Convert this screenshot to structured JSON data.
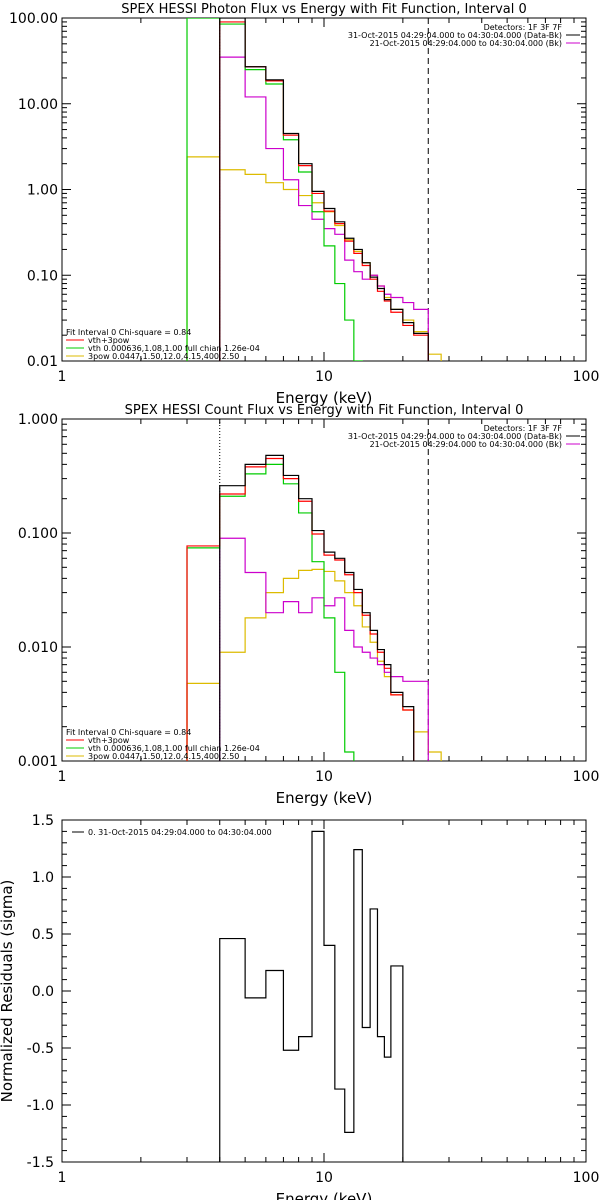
{
  "colors": {
    "total": "#000000",
    "vth_plus_3pow": "#ff0000",
    "vth": "#00cc00",
    "3pow": "#ddbb00",
    "bk": "#cc00cc"
  },
  "chart_data": [
    {
      "type": "step",
      "title": "SPEX HESSI Photon Flux vs Energy with Fit Function, Interval 0",
      "xlabel": "Energy (keV)",
      "ylabel": "",
      "xscale": "log",
      "yscale": "log",
      "xlim": [
        1,
        100
      ],
      "ylim": [
        0.01,
        100
      ],
      "xticks": [
        "1",
        "10",
        "100"
      ],
      "yticks": [
        "0.01",
        "0.10",
        "1.00",
        "10.00",
        "100.00"
      ],
      "legend_top_right": [
        "Detectors: 1F 3F 7F",
        "31-Oct-2015 04:29:04.000 to 04:30:04.000 (Data-Bk)",
        "21-Oct-2015 04:29:04.000 to 04:30:04.000 (Bk)"
      ],
      "legend_bottom_left": [
        "Fit Interval 0   Chi-square = 0.84",
        "vth+3pow",
        "vth 0.000636,1.08,1.00  full chian 1.26e-04",
        "3pow 0.0447,1.50,12.0,4.15,400,2.50"
      ],
      "vlines": [
        4.0,
        25.0
      ],
      "edges": [
        3.0,
        4.0,
        5.0,
        6.0,
        7.0,
        8.0,
        9.0,
        10.0,
        11.0,
        12.0,
        13.0,
        14.0,
        15.0,
        16.0,
        17.0,
        18.0,
        20.0,
        22.0,
        25.0,
        28.0
      ],
      "series": [
        {
          "name": "Data-Bk",
          "color": "#000000",
          "values": [
            null,
            100,
            27,
            19,
            4.5,
            2.0,
            0.95,
            0.6,
            0.42,
            0.27,
            0.2,
            0.14,
            0.095,
            0.07,
            0.052,
            0.04,
            0.028,
            0.021,
            null
          ]
        },
        {
          "name": "vth+3pow",
          "color": "#ff0000",
          "values": [
            null,
            90,
            27,
            18.5,
            4.3,
            1.9,
            0.9,
            0.56,
            0.4,
            0.25,
            0.18,
            0.13,
            0.09,
            0.065,
            0.05,
            0.037,
            0.026,
            0.02,
            null
          ]
        },
        {
          "name": "vth",
          "color": "#00cc00",
          "values": [
            100,
            85,
            25,
            17,
            3.8,
            1.6,
            0.55,
            0.22,
            0.08,
            0.03,
            0.01,
            null,
            null,
            null,
            null,
            null,
            null,
            null,
            null
          ]
        },
        {
          "name": "3pow",
          "color": "#ddbb00",
          "values": [
            2.4,
            1.7,
            1.5,
            1.2,
            1.0,
            0.85,
            0.7,
            0.55,
            0.38,
            0.26,
            0.19,
            0.14,
            0.1,
            0.075,
            0.055,
            0.04,
            0.03,
            0.022,
            0.012
          ]
        },
        {
          "name": "Bk",
          "color": "#cc00cc",
          "values": [
            null,
            35,
            12,
            3.0,
            1.3,
            0.65,
            0.45,
            0.35,
            0.3,
            0.15,
            0.11,
            0.09,
            0.1,
            0.075,
            0.06,
            0.055,
            0.048,
            0.04,
            null
          ]
        }
      ]
    },
    {
      "type": "step",
      "title": "SPEX HESSI Count Flux vs Energy with Fit Function, Interval 0",
      "xlabel": "Energy (keV)",
      "ylabel": "",
      "xscale": "log",
      "yscale": "log",
      "xlim": [
        1,
        100
      ],
      "ylim": [
        0.001,
        1
      ],
      "xticks": [
        "1",
        "10",
        "100"
      ],
      "yticks": [
        "0.001",
        "0.010",
        "0.100",
        "1.000"
      ],
      "legend_top_right": [
        "Detectors: 1F 3F 7F",
        "31-Oct-2015 04:29:04.000 to 04:30:04.000 (Data-Bk)",
        "21-Oct-2015 04:29:04.000 to 04:30:04.000 (Bk)"
      ],
      "legend_bottom_left": [
        "Fit Interval 0   Chi-square = 0.84",
        "vth+3pow",
        "vth 0.000636,1.08,1.00  full chian 1.26e-04",
        "3pow 0.0447,1.50,12.0,4.15,400,2.50"
      ],
      "vlines": [
        4.0,
        25.0
      ],
      "edges": [
        3.0,
        4.0,
        5.0,
        6.0,
        7.0,
        8.0,
        9.0,
        10.0,
        11.0,
        12.0,
        13.0,
        14.0,
        15.0,
        16.0,
        17.0,
        18.0,
        20.0,
        22.0,
        25.0,
        28.0
      ],
      "series": [
        {
          "name": "Data-Bk",
          "color": "#000000",
          "values": [
            null,
            0.26,
            0.4,
            0.48,
            0.32,
            0.2,
            0.105,
            0.068,
            0.06,
            0.045,
            0.032,
            0.02,
            0.014,
            0.0095,
            0.007,
            0.004,
            0.003,
            null,
            null
          ]
        },
        {
          "name": "vth+3pow",
          "color": "#ff0000",
          "values": [
            0.077,
            0.22,
            0.38,
            0.45,
            0.3,
            0.19,
            0.098,
            0.064,
            0.058,
            0.043,
            0.03,
            0.019,
            0.013,
            0.009,
            0.0065,
            0.0038,
            0.0028,
            null,
            null
          ]
        },
        {
          "name": "vth",
          "color": "#00cc00",
          "values": [
            0.074,
            0.21,
            0.33,
            0.4,
            0.27,
            0.15,
            0.056,
            0.018,
            0.006,
            0.0012,
            null,
            null,
            null,
            null,
            null,
            null,
            null,
            null,
            null
          ]
        },
        {
          "name": "3pow",
          "color": "#ddbb00",
          "values": [
            0.0048,
            0.009,
            0.018,
            0.03,
            0.04,
            0.047,
            0.048,
            0.046,
            0.038,
            0.03,
            0.023,
            0.015,
            0.011,
            0.0075,
            0.0055,
            0.0038,
            0.0028,
            0.0018,
            0.0012
          ]
        },
        {
          "name": "Bk",
          "color": "#cc00cc",
          "values": [
            null,
            0.09,
            0.045,
            0.02,
            0.025,
            0.02,
            0.027,
            0.023,
            0.027,
            0.014,
            0.01,
            0.009,
            0.008,
            0.007,
            0.006,
            0.0055,
            0.005,
            0.005,
            null
          ]
        }
      ]
    },
    {
      "type": "step",
      "title": "",
      "xlabel": "Energy (keV)",
      "ylabel": "Normalized Residuals (sigma)",
      "xscale": "log",
      "yscale": "linear",
      "xlim": [
        1,
        100
      ],
      "ylim": [
        -1.5,
        1.5
      ],
      "xticks": [
        "1",
        "10",
        "100"
      ],
      "yticks": [
        "-1.5",
        "-1.0",
        "-0.5",
        "0.0",
        "0.5",
        "1.0",
        "1.5"
      ],
      "legend_top_left": [
        "0. 31-Oct-2015 04:29:04.000 to 04:30:04.000"
      ],
      "edges": [
        4.0,
        5.0,
        6.0,
        7.0,
        8.0,
        9.0,
        10.0,
        11.0,
        12.0,
        13.0,
        14.0,
        15.0,
        16.0,
        17.0,
        18.0,
        20.0,
        22.0,
        25.0
      ],
      "series": [
        {
          "name": "0. 31-Oct-2015 04:29:04.000 to 04:30:04.000",
          "color": "#000000",
          "values": [
            0.46,
            -0.06,
            0.18,
            -0.52,
            -0.4,
            1.4,
            0.4,
            -0.86,
            -1.24,
            1.24,
            -0.32,
            0.72,
            -0.4,
            -0.58,
            0.22,
            null,
            null
          ]
        }
      ]
    }
  ]
}
